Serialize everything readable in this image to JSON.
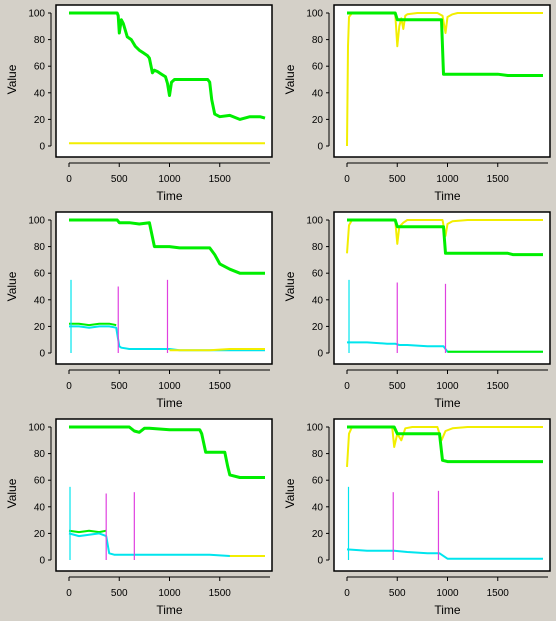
{
  "colors": {
    "window_bg": "#d4d0c8",
    "plot_bg": "#ffffff",
    "frame": "#000000",
    "green": "#00ee00",
    "yellow": "#f2ee00",
    "cyan": "#00e5ee",
    "magenta": "#e040e0",
    "dark": "#333333"
  },
  "chart_data": [
    {
      "type": "line",
      "xlabel": "Time",
      "ylabel": "Value",
      "xlim": [
        0,
        2000
      ],
      "ylim": [
        0,
        100
      ],
      "xticks": [
        0,
        500,
        1000,
        1500
      ],
      "yticks": [
        0,
        20,
        40,
        60,
        80,
        100
      ],
      "series": [
        {
          "color": "green",
          "x": [
            0,
            480,
            490,
            500,
            520,
            540,
            580,
            620,
            660,
            700,
            740,
            780,
            800,
            830,
            850,
            880,
            920,
            960,
            980,
            1000,
            1020,
            1050,
            1100,
            1200,
            1300,
            1380,
            1400,
            1420,
            1450,
            1500,
            1600,
            1700,
            1800,
            1900,
            1950
          ],
          "y": [
            100,
            100,
            98,
            85,
            95,
            92,
            82,
            80,
            75,
            72,
            70,
            68,
            66,
            55,
            57,
            56,
            54,
            52,
            47,
            38,
            48,
            50,
            50,
            50,
            50,
            50,
            48,
            35,
            24,
            22,
            23,
            20,
            22,
            22,
            21
          ]
        },
        {
          "color": "yellow",
          "x": [
            0,
            200,
            500,
            800,
            1100,
            1400,
            1700,
            1950
          ],
          "y": [
            2,
            2,
            2,
            2,
            2,
            2,
            2,
            2
          ]
        }
      ]
    },
    {
      "type": "line",
      "xlabel": "Time",
      "ylabel": "Value",
      "xlim": [
        0,
        2000
      ],
      "ylim": [
        0,
        100
      ],
      "xticks": [
        0,
        500,
        1000,
        1500
      ],
      "yticks": [
        0,
        20,
        40,
        60,
        80,
        100
      ],
      "series": [
        {
          "color": "yellow",
          "x": [
            0,
            10,
            20,
            50,
            480,
            500,
            520,
            540,
            560,
            580,
            600,
            700,
            900,
            950,
            980,
            1000,
            1050,
            1100,
            1200,
            1500,
            1950
          ],
          "y": [
            0,
            75,
            97,
            100,
            100,
            75,
            90,
            96,
            88,
            98,
            99,
            100,
            100,
            98,
            85,
            97,
            99,
            100,
            100,
            100,
            100
          ]
        },
        {
          "color": "green",
          "x": [
            0,
            480,
            500,
            900,
            940,
            960,
            1000,
            1500,
            1600,
            1950
          ],
          "y": [
            100,
            100,
            95,
            95,
            95,
            54,
            54,
            54,
            53,
            53
          ]
        }
      ]
    },
    {
      "type": "line",
      "xlabel": "Time",
      "ylabel": "Value",
      "xlim": [
        0,
        2000
      ],
      "ylim": [
        0,
        100
      ],
      "xticks": [
        0,
        500,
        1000,
        1500
      ],
      "yticks": [
        0,
        20,
        40,
        60,
        80,
        100
      ],
      "series": [
        {
          "color": "green",
          "x": [
            0,
            480,
            500,
            600,
            700,
            800,
            850,
            1000,
            1100,
            1400,
            1450,
            1500,
            1600,
            1700,
            1950
          ],
          "y": [
            100,
            100,
            98,
            98,
            97,
            98,
            80,
            80,
            79,
            79,
            74,
            67,
            63,
            60,
            60
          ]
        },
        {
          "color": "green",
          "x": [
            0,
            100,
            200,
            300,
            400,
            470
          ],
          "y": [
            22,
            22,
            21,
            22,
            22,
            21
          ]
        },
        {
          "color": "cyan",
          "x": [
            0,
            100,
            200,
            300,
            400,
            470,
            500,
            520,
            600,
            800,
            1000,
            1100,
            1200,
            1400,
            1600,
            1800,
            1950
          ],
          "y": [
            20,
            20,
            19,
            20,
            20,
            19,
            5,
            4,
            3,
            3,
            3,
            2,
            2,
            2,
            2,
            2,
            2
          ]
        },
        {
          "color": "yellow",
          "x": [
            1000,
            1200,
            1400,
            1600,
            1800,
            1950
          ],
          "y": [
            2,
            2,
            2,
            3,
            3,
            3
          ]
        }
      ],
      "spikes": [
        {
          "color": "cyan",
          "x": 20,
          "y": 55
        },
        {
          "color": "magenta",
          "x": 490,
          "y": 50
        },
        {
          "color": "magenta",
          "x": 980,
          "y": 55
        }
      ]
    },
    {
      "type": "line",
      "xlabel": "Time",
      "ylabel": "Value",
      "xlim": [
        0,
        2000
      ],
      "ylim": [
        0,
        100
      ],
      "xticks": [
        0,
        500,
        1000,
        1500
      ],
      "yticks": [
        0,
        20,
        40,
        60,
        80,
        100
      ],
      "series": [
        {
          "color": "yellow",
          "x": [
            0,
            20,
            50,
            480,
            500,
            520,
            560,
            600,
            950,
            980,
            1000,
            1050,
            1200,
            1950
          ],
          "y": [
            75,
            96,
            100,
            100,
            82,
            95,
            98,
            100,
            100,
            88,
            97,
            99,
            100,
            100
          ]
        },
        {
          "color": "green",
          "x": [
            0,
            480,
            500,
            960,
            980,
            1600,
            1650,
            1950
          ],
          "y": [
            100,
            100,
            95,
            95,
            75,
            75,
            74,
            74
          ]
        },
        {
          "color": "cyan",
          "x": [
            0,
            200,
            400,
            480,
            520,
            600,
            800,
            960,
            1000,
            1200,
            1600,
            1950
          ],
          "y": [
            8,
            8,
            7,
            7,
            6,
            6,
            5,
            5,
            1,
            1,
            1,
            1
          ]
        },
        {
          "color": "green",
          "x": [
            1000,
            1400,
            1950
          ],
          "y": [
            1,
            1,
            1
          ]
        }
      ],
      "spikes": [
        {
          "color": "cyan",
          "x": 20,
          "y": 55
        },
        {
          "color": "magenta",
          "x": 500,
          "y": 53
        },
        {
          "color": "magenta",
          "x": 980,
          "y": 52
        }
      ]
    },
    {
      "type": "line",
      "xlabel": "Time",
      "ylabel": "Value",
      "xlim": [
        0,
        2000
      ],
      "ylim": [
        0,
        100
      ],
      "xticks": [
        0,
        500,
        1000,
        1500
      ],
      "yticks": [
        0,
        20,
        40,
        60,
        80,
        100
      ],
      "series": [
        {
          "color": "green",
          "x": [
            0,
            600,
            650,
            700,
            750,
            800,
            1000,
            1300,
            1320,
            1360,
            1550,
            1580,
            1600,
            1700,
            1950
          ],
          "y": [
            100,
            100,
            97,
            96,
            99,
            99,
            98,
            98,
            95,
            81,
            81,
            70,
            64,
            62,
            62
          ]
        },
        {
          "color": "green",
          "x": [
            0,
            100,
            200,
            300,
            370
          ],
          "y": [
            22,
            21,
            22,
            21,
            22
          ]
        },
        {
          "color": "cyan",
          "x": [
            0,
            100,
            200,
            300,
            370,
            400,
            450,
            600,
            800,
            1000,
            1200,
            1400,
            1600,
            1950
          ],
          "y": [
            20,
            18,
            19,
            20,
            18,
            5,
            4,
            4,
            4,
            4,
            4,
            4,
            3,
            3
          ]
        },
        {
          "color": "yellow",
          "x": [
            1600,
            1800,
            1950
          ],
          "y": [
            3,
            3,
            3
          ]
        }
      ],
      "spikes": [
        {
          "color": "cyan",
          "x": 10,
          "y": 55
        },
        {
          "color": "magenta",
          "x": 370,
          "y": 50
        },
        {
          "color": "magenta",
          "x": 650,
          "y": 51
        }
      ]
    },
    {
      "type": "line",
      "xlabel": "Time",
      "ylabel": "Value",
      "xlim": [
        0,
        2000
      ],
      "ylim": [
        0,
        100
      ],
      "xticks": [
        0,
        500,
        1000,
        1500
      ],
      "yticks": [
        0,
        20,
        40,
        60,
        80,
        100
      ],
      "series": [
        {
          "color": "yellow",
          "x": [
            0,
            20,
            50,
            450,
            470,
            500,
            540,
            580,
            650,
            900,
            940,
            980,
            1050,
            1200,
            1950
          ],
          "y": [
            70,
            95,
            100,
            100,
            85,
            95,
            90,
            99,
            100,
            100,
            90,
            97,
            99,
            100,
            100
          ]
        },
        {
          "color": "green",
          "x": [
            0,
            470,
            500,
            600,
            920,
            950,
            1000,
            1950
          ],
          "y": [
            100,
            100,
            95,
            95,
            95,
            75,
            74,
            74
          ]
        },
        {
          "color": "cyan",
          "x": [
            0,
            200,
            470,
            600,
            800,
            920,
            1000,
            1200,
            1600,
            1950
          ],
          "y": [
            8,
            7,
            7,
            6,
            5,
            5,
            1,
            1,
            1,
            1
          ]
        }
      ],
      "spikes": [
        {
          "color": "cyan",
          "x": 15,
          "y": 55
        },
        {
          "color": "magenta",
          "x": 460,
          "y": 51
        },
        {
          "color": "magenta",
          "x": 910,
          "y": 52
        }
      ]
    }
  ]
}
